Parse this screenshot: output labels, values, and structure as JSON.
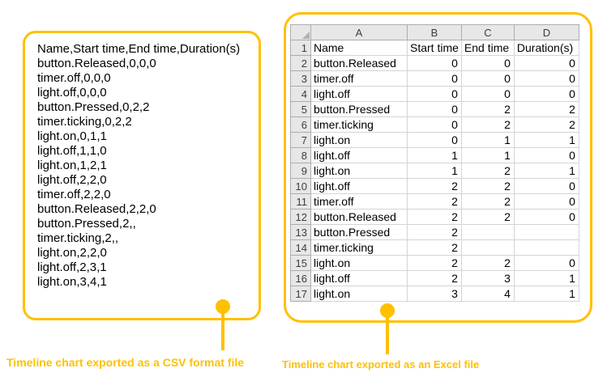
{
  "colors": {
    "accent": "#FFC000",
    "header_fill": "#E7E7E7",
    "header_border": "#ACACAC",
    "gridline": "#D4D4D4"
  },
  "csv_panel": {
    "caption": "Timeline chart exported as a CSV format file",
    "lines": [
      "Name,Start time,End time,Duration(s)",
      "button.Released,0,0,0",
      "timer.off,0,0,0",
      "light.off,0,0,0",
      "button.Pressed,0,2,2",
      "timer.ticking,0,2,2",
      "light.on,0,1,1",
      "light.off,1,1,0",
      "light.on,1,2,1",
      "light.off,2,2,0",
      "timer.off,2,2,0",
      "button.Released,2,2,0",
      "button.Pressed,2,,",
      "timer.ticking,2,,",
      "light.on,2,2,0",
      "light.off,2,3,1",
      "light.on,3,4,1"
    ]
  },
  "excel_panel": {
    "caption": "Timeline chart exported as an Excel file",
    "sheet": {
      "col_headers": [
        "A",
        "B",
        "C",
        "D"
      ],
      "rows": [
        {
          "n": 1,
          "cells": [
            "Name",
            "Start time",
            "End time",
            "Duration(s)"
          ]
        },
        {
          "n": 2,
          "cells": [
            "button.Released",
            "0",
            "0",
            "0"
          ]
        },
        {
          "n": 3,
          "cells": [
            "timer.off",
            "0",
            "0",
            "0"
          ]
        },
        {
          "n": 4,
          "cells": [
            "light.off",
            "0",
            "0",
            "0"
          ]
        },
        {
          "n": 5,
          "cells": [
            "button.Pressed",
            "0",
            "2",
            "2"
          ]
        },
        {
          "n": 6,
          "cells": [
            "timer.ticking",
            "0",
            "2",
            "2"
          ]
        },
        {
          "n": 7,
          "cells": [
            "light.on",
            "0",
            "1",
            "1"
          ]
        },
        {
          "n": 8,
          "cells": [
            "light.off",
            "1",
            "1",
            "0"
          ]
        },
        {
          "n": 9,
          "cells": [
            "light.on",
            "1",
            "2",
            "1"
          ]
        },
        {
          "n": 10,
          "cells": [
            "light.off",
            "2",
            "2",
            "0"
          ]
        },
        {
          "n": 11,
          "cells": [
            "timer.off",
            "2",
            "2",
            "0"
          ]
        },
        {
          "n": 12,
          "cells": [
            "button.Released",
            "2",
            "2",
            "0"
          ]
        },
        {
          "n": 13,
          "cells": [
            "button.Pressed",
            "2",
            "",
            ""
          ]
        },
        {
          "n": 14,
          "cells": [
            "timer.ticking",
            "2",
            "",
            ""
          ]
        },
        {
          "n": 15,
          "cells": [
            "light.on",
            "2",
            "2",
            "0"
          ]
        },
        {
          "n": 16,
          "cells": [
            "light.off",
            "2",
            "3",
            "1"
          ]
        },
        {
          "n": 17,
          "cells": [
            "light.on",
            "3",
            "4",
            "1"
          ]
        }
      ]
    }
  }
}
